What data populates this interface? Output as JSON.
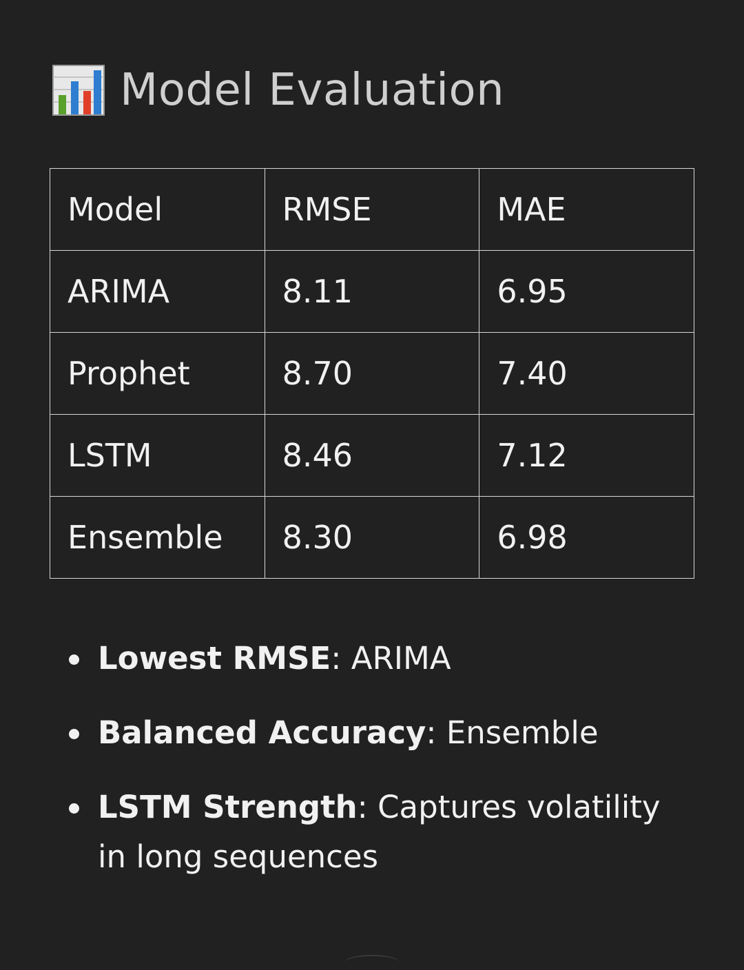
{
  "heading": {
    "icon": "bar-chart-icon",
    "title": "Model Evaluation"
  },
  "table": {
    "headers": [
      "Model",
      "RMSE",
      "MAE"
    ],
    "rows": [
      [
        "ARIMA",
        "8.11",
        "6.95"
      ],
      [
        "Prophet",
        "8.70",
        "7.40"
      ],
      [
        "LSTM",
        "8.46",
        "7.12"
      ],
      [
        "Ensemble",
        "8.30",
        "6.98"
      ]
    ]
  },
  "notes": [
    {
      "label": "Lowest RMSE",
      "sep": ":",
      "value": " ARIMA"
    },
    {
      "label": "Balanced Accuracy",
      "sep": ":",
      "value": " Ensemble"
    },
    {
      "label": "LSTM Strength",
      "sep": ":",
      "value": " Captures volatility in long sequences"
    }
  ],
  "colors": {
    "background": "#212121",
    "text": "#f1f1f1",
    "heading": "#cfcfcf",
    "border": "#d8d8d8"
  }
}
